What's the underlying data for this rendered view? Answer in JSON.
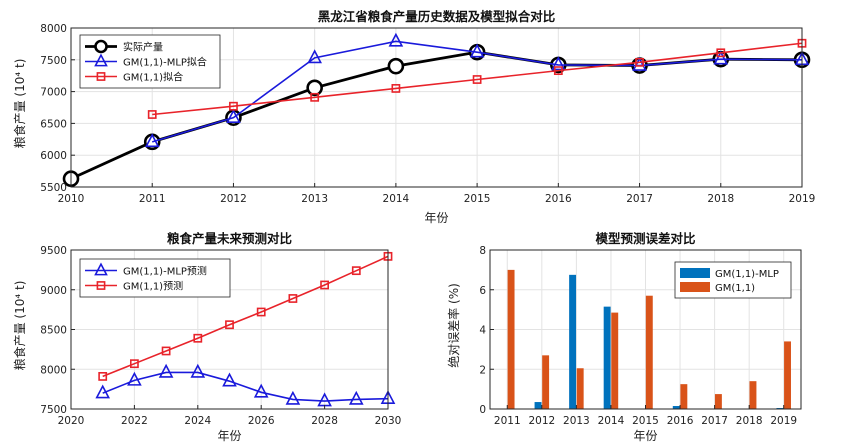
{
  "chart_data": [
    {
      "type": "line",
      "title": "黑龙江省粮食产量历史数据及模型拟合对比",
      "xlabel": "年份",
      "ylabel": "粮食产量 (10⁴ t)",
      "xlim": [
        2010,
        2019
      ],
      "ylim": [
        5500,
        8000
      ],
      "xticks": [
        2010,
        2011,
        2012,
        2013,
        2014,
        2015,
        2016,
        2017,
        2018,
        2019
      ],
      "yticks": [
        5500,
        6000,
        6500,
        7000,
        7500,
        8000
      ],
      "grid": true,
      "legend": "top-left",
      "series": [
        {
          "name": "实际产量",
          "color": "#000000",
          "marker": "circle",
          "x": [
            2010,
            2011,
            2012,
            2013,
            2014,
            2015,
            2016,
            2017,
            2018,
            2019
          ],
          "y": [
            5630,
            6210,
            6590,
            7060,
            7400,
            7620,
            7420,
            7410,
            7510,
            7500
          ]
        },
        {
          "name": "GM(1,1)-MLP拟合",
          "color": "#1a1adb",
          "marker": "triangle",
          "x": [
            2011,
            2012,
            2013,
            2014,
            2015,
            2016,
            2017,
            2018,
            2019
          ],
          "y": [
            6210,
            6590,
            7530,
            7790,
            7620,
            7420,
            7410,
            7510,
            7500
          ]
        },
        {
          "name": "GM(1,1)拟合",
          "color": "#e8232a",
          "marker": "square",
          "x": [
            2011,
            2012,
            2013,
            2014,
            2015,
            2016,
            2017,
            2018,
            2019
          ],
          "y": [
            6640,
            6770,
            6910,
            7050,
            7190,
            7330,
            7460,
            7610,
            7760
          ]
        }
      ]
    },
    {
      "type": "line",
      "title": "粮食产量未来预测对比",
      "xlabel": "年份",
      "ylabel": "粮食产量 (10⁴ t)",
      "xlim": [
        2020,
        2030
      ],
      "ylim": [
        7500,
        9500
      ],
      "xticks": [
        2020,
        2022,
        2024,
        2026,
        2028,
        2030
      ],
      "yticks": [
        7500,
        8000,
        8500,
        9000,
        9500
      ],
      "grid": true,
      "legend": "top-left",
      "series": [
        {
          "name": "GM(1,1)-MLP预测",
          "color": "#1a1adb",
          "marker": "triangle",
          "x": [
            2021,
            2022,
            2023,
            2024,
            2025,
            2026,
            2027,
            2028,
            2029,
            2030
          ],
          "y": [
            7700,
            7860,
            7960,
            7960,
            7850,
            7710,
            7620,
            7600,
            7620,
            7630
          ]
        },
        {
          "name": "GM(1,1)预测",
          "color": "#e8232a",
          "marker": "square",
          "x": [
            2021,
            2022,
            2023,
            2024,
            2025,
            2026,
            2027,
            2028,
            2029,
            2030
          ],
          "y": [
            7910,
            8070,
            8230,
            8390,
            8560,
            8720,
            8890,
            9060,
            9240,
            9420
          ]
        }
      ]
    },
    {
      "type": "bar",
      "title": "模型预测误差对比",
      "xlabel": "年份",
      "ylabel": "绝对误差率 (%)",
      "ylim": [
        0,
        8
      ],
      "yticks": [
        0,
        2,
        4,
        6,
        8
      ],
      "grid": true,
      "legend": "top-right",
      "categories": [
        "2011",
        "2012",
        "2013",
        "2014",
        "2015",
        "2016",
        "2017",
        "2018",
        "2019"
      ],
      "series": [
        {
          "name": "GM(1,1)-MLP",
          "color": "#0072bd",
          "values": [
            0,
            0.35,
            6.75,
            5.15,
            0,
            0.15,
            0,
            0,
            0.05
          ]
        },
        {
          "name": "GM(1,1)",
          "color": "#d95319",
          "values": [
            7.0,
            2.7,
            2.05,
            4.85,
            5.7,
            1.25,
            0.75,
            1.4,
            3.4
          ]
        }
      ]
    }
  ]
}
